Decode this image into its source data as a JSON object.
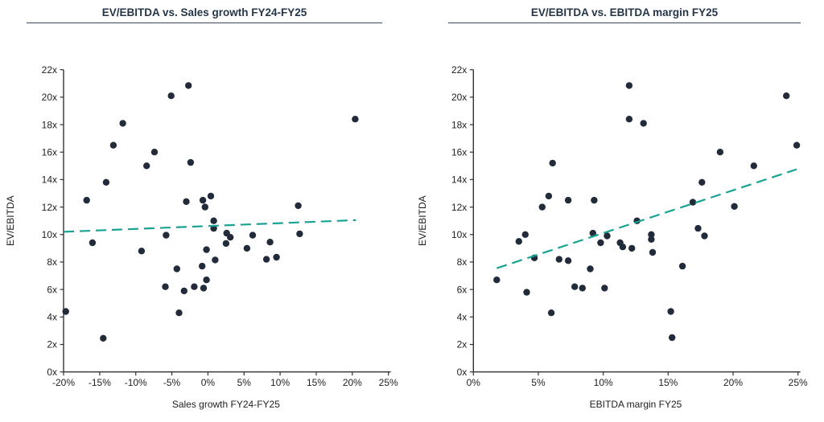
{
  "page": {
    "background": "#ffffff"
  },
  "colors": {
    "point": "#222B3A",
    "trendline": "#18A392",
    "title": "#253648",
    "title_rule": "#394A63",
    "axis": "#333333",
    "tick_label": "#1F1F1F"
  },
  "chart_data": [
    {
      "type": "scatter",
      "title": "EV/EBITDA vs. Sales growth FY24-FY25",
      "xlabel": "Sales growth FY24-FY25",
      "ylabel": "EV/EBITDA",
      "xlim": [
        -20,
        25
      ],
      "ylim": [
        0,
        22
      ],
      "grid": false,
      "legend": "none",
      "x_tick_values": [
        -20,
        -15,
        -10,
        -5,
        0,
        5,
        10,
        15,
        20,
        25
      ],
      "x_tick_labels": [
        "-20%",
        "-15%",
        "-10%",
        "-5%",
        "0%",
        "5%",
        "10%",
        "15%",
        "20%",
        "25%"
      ],
      "y_tick_values": [
        0,
        2,
        4,
        6,
        8,
        10,
        12,
        14,
        16,
        18,
        20,
        22
      ],
      "y_tick_labels": [
        "0x",
        "2x",
        "4x",
        "6x",
        "8x",
        "10x",
        "12x",
        "14x",
        "16x",
        "18x",
        "20x",
        "22x"
      ],
      "points": [
        [
          -19.7,
          4.4
        ],
        [
          -16.8,
          12.5
        ],
        [
          -16.0,
          9.4
        ],
        [
          -14.5,
          2.45
        ],
        [
          -14.1,
          13.8
        ],
        [
          -13.1,
          16.5
        ],
        [
          -11.8,
          18.1
        ],
        [
          -9.2,
          8.8
        ],
        [
          -8.5,
          15.0
        ],
        [
          -7.4,
          16.0
        ],
        [
          -5.9,
          6.2
        ],
        [
          -5.8,
          9.95
        ],
        [
          -5.1,
          20.1
        ],
        [
          -4.3,
          7.5
        ],
        [
          -4.0,
          4.3
        ],
        [
          -3.3,
          5.9
        ],
        [
          -3.0,
          12.4
        ],
        [
          -2.7,
          20.85
        ],
        [
          -2.4,
          15.25
        ],
        [
          -1.9,
          6.2
        ],
        [
          -0.8,
          7.7
        ],
        [
          -0.7,
          12.5
        ],
        [
          -0.6,
          6.1
        ],
        [
          -0.4,
          12.0
        ],
        [
          -0.2,
          8.9
        ],
        [
          -0.2,
          6.7
        ],
        [
          0.4,
          12.8
        ],
        [
          0.8,
          11.0
        ],
        [
          0.8,
          10.45
        ],
        [
          1.0,
          8.15
        ],
        [
          2.5,
          9.35
        ],
        [
          2.6,
          10.1
        ],
        [
          3.1,
          9.8
        ],
        [
          5.4,
          9.0
        ],
        [
          6.2,
          9.95
        ],
        [
          8.1,
          8.2
        ],
        [
          8.6,
          9.45
        ],
        [
          9.5,
          8.35
        ],
        [
          12.5,
          12.1
        ],
        [
          12.7,
          10.05
        ],
        [
          20.4,
          18.4
        ]
      ],
      "trendline": {
        "style": "dashed",
        "x": [
          -20,
          20.5
        ],
        "y": [
          10.2,
          11.05
        ]
      }
    },
    {
      "type": "scatter",
      "title": "EV/EBITDA vs. EBITDA margin FY25",
      "xlabel": "EBITDA margin FY25",
      "ylabel": "EV/EBITDA",
      "xlim": [
        0,
        25
      ],
      "ylim": [
        0,
        22
      ],
      "grid": false,
      "legend": "none",
      "x_tick_values": [
        0,
        5,
        10,
        15,
        20,
        25
      ],
      "x_tick_labels": [
        "0%",
        "5%",
        "10%",
        "15%",
        "20%",
        "25%"
      ],
      "y_tick_values": [
        0,
        2,
        4,
        6,
        8,
        10,
        12,
        14,
        16,
        18,
        20,
        22
      ],
      "y_tick_labels": [
        "0x",
        "2x",
        "4x",
        "6x",
        "8x",
        "10x",
        "12x",
        "14x",
        "16x",
        "18x",
        "20x",
        "22x"
      ],
      "points": [
        [
          1.8,
          6.7
        ],
        [
          3.5,
          9.5
        ],
        [
          4.0,
          10.0
        ],
        [
          4.1,
          5.8
        ],
        [
          4.7,
          8.3
        ],
        [
          5.3,
          12.0
        ],
        [
          5.8,
          12.8
        ],
        [
          6.0,
          4.3
        ],
        [
          6.1,
          15.2
        ],
        [
          6.6,
          8.2
        ],
        [
          7.3,
          12.5
        ],
        [
          7.3,
          8.1
        ],
        [
          7.8,
          6.2
        ],
        [
          8.4,
          6.1
        ],
        [
          9.0,
          7.5
        ],
        [
          9.2,
          10.1
        ],
        [
          9.3,
          12.5
        ],
        [
          9.8,
          9.4
        ],
        [
          10.1,
          6.1
        ],
        [
          10.3,
          9.9
        ],
        [
          11.3,
          9.4
        ],
        [
          11.5,
          9.1
        ],
        [
          12.0,
          20.85
        ],
        [
          12.0,
          18.4
        ],
        [
          12.2,
          9.0
        ],
        [
          12.6,
          11.0
        ],
        [
          13.1,
          18.1
        ],
        [
          13.7,
          10.0
        ],
        [
          13.7,
          9.65
        ],
        [
          13.8,
          8.7
        ],
        [
          15.2,
          4.4
        ],
        [
          15.3,
          2.5
        ],
        [
          16.1,
          7.7
        ],
        [
          16.9,
          12.35
        ],
        [
          17.3,
          10.45
        ],
        [
          17.6,
          13.8
        ],
        [
          17.8,
          9.9
        ],
        [
          19.0,
          16.0
        ],
        [
          20.1,
          12.05
        ],
        [
          21.6,
          15.0
        ],
        [
          24.1,
          20.1
        ],
        [
          24.9,
          16.5
        ]
      ],
      "trendline": {
        "style": "dashed",
        "x": [
          1.8,
          24.9
        ],
        "y": [
          7.55,
          14.75
        ]
      }
    }
  ]
}
